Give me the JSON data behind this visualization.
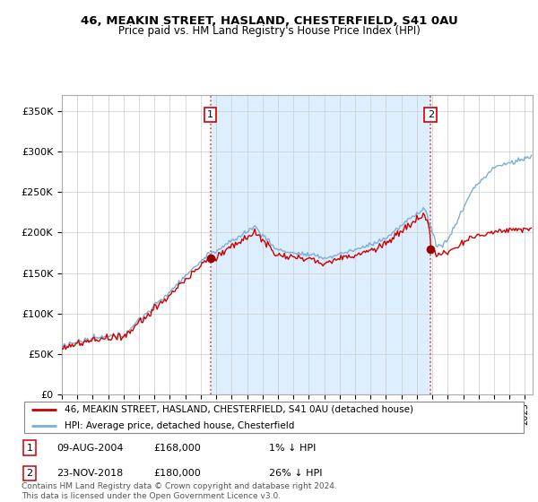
{
  "title1": "46, MEAKIN STREET, HASLAND, CHESTERFIELD, S41 0AU",
  "title2": "Price paid vs. HM Land Registry's House Price Index (HPI)",
  "ylabel_ticks": [
    "£0",
    "£50K",
    "£100K",
    "£150K",
    "£200K",
    "£250K",
    "£300K",
    "£350K"
  ],
  "ytick_values": [
    0,
    50000,
    100000,
    150000,
    200000,
    250000,
    300000,
    350000
  ],
  "ylim": [
    0,
    370000
  ],
  "xlim_start": 1995.0,
  "xlim_end": 2025.5,
  "sale1_date": 2004.62,
  "sale1_price": 168000,
  "sale1_label": "1",
  "sale2_date": 2018.9,
  "sale2_price": 180000,
  "sale2_label": "2",
  "hpi_color": "#7ab0d4",
  "price_color": "#cc0000",
  "dot_color": "#990000",
  "shade_color": "#ddeeff",
  "legend_line1": "46, MEAKIN STREET, HASLAND, CHESTERFIELD, S41 0AU (detached house)",
  "legend_line2": "HPI: Average price, detached house, Chesterfield",
  "footer": "Contains HM Land Registry data © Crown copyright and database right 2024.\nThis data is licensed under the Open Government Licence v3.0.",
  "grid_color": "#cccccc",
  "bg_color": "white"
}
